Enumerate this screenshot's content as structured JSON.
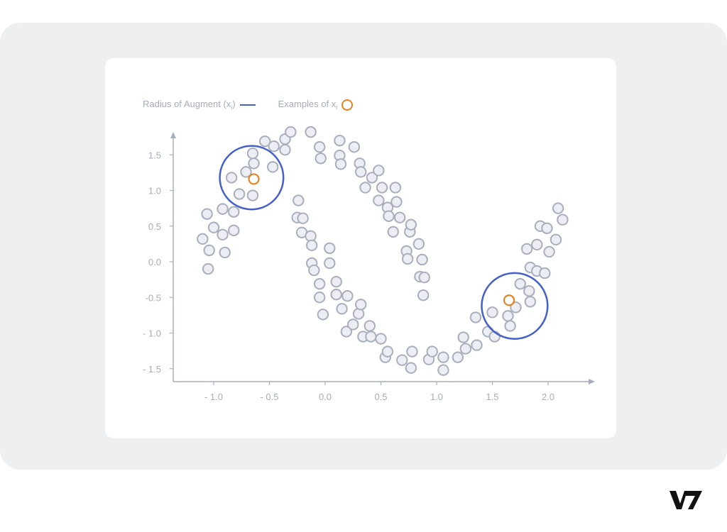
{
  "legend": {
    "radius_label": "Radius of Augment (x",
    "radius_sub": "i",
    "radius_close": ")",
    "examples_label": "Examples of x",
    "examples_sub": "i"
  },
  "colors": {
    "accent_blue": "#4560c9",
    "accent_orange": "#e8821e",
    "point_stroke": "#a9aebd",
    "point_fill": "#eceef3",
    "axis": "#a9aebd"
  },
  "logo": {
    "name": "v7-logo"
  },
  "chart_data": {
    "type": "scatter",
    "title": "",
    "xlabel": "",
    "ylabel": "",
    "xlim": [
      -1.2,
      2.4
    ],
    "ylim": [
      -1.65,
      1.8
    ],
    "grid": false,
    "x_ticks": [
      {
        "value": -1.0,
        "label": "- 1.0"
      },
      {
        "value": -0.5,
        "label": "- 0.5"
      },
      {
        "value": 0.0,
        "label": "0.0"
      },
      {
        "value": 0.5,
        "label": "0.5"
      },
      {
        "value": 1.0,
        "label": "1.0"
      },
      {
        "value": 1.5,
        "label": "1.5"
      },
      {
        "value": 2.0,
        "label": "2.0"
      }
    ],
    "y_ticks": [
      {
        "value": 1.5,
        "label": "1.5"
      },
      {
        "value": 1.0,
        "label": "1.0"
      },
      {
        "value": 0.5,
        "label": "0.5"
      },
      {
        "value": 0.0,
        "label": "0.0"
      },
      {
        "value": -0.5,
        "label": "-0.5"
      },
      {
        "value": -1.0,
        "label": "- 1.0"
      },
      {
        "value": -1.5,
        "label": "- 1.5"
      }
    ],
    "points": [
      [
        -1.1,
        0.32
      ],
      [
        -1.06,
        0.67
      ],
      [
        -1.04,
        0.16
      ],
      [
        -1.05,
        -0.1
      ],
      [
        -1.0,
        0.48
      ],
      [
        -0.92,
        0.38
      ],
      [
        -0.92,
        0.74
      ],
      [
        -0.9,
        0.13
      ],
      [
        -0.82,
        0.44
      ],
      [
        -0.82,
        0.7
      ],
      [
        -0.84,
        1.18
      ],
      [
        -0.77,
        0.95
      ],
      [
        -0.71,
        1.26
      ],
      [
        -0.65,
        1.52
      ],
      [
        -0.64,
        1.38
      ],
      [
        -0.65,
        0.93
      ],
      [
        -0.54,
        1.69
      ],
      [
        -0.46,
        1.62
      ],
      [
        -0.47,
        1.33
      ],
      [
        -0.36,
        1.72
      ],
      [
        -0.36,
        1.57
      ],
      [
        -0.31,
        1.82
      ],
      [
        -0.24,
        0.86
      ],
      [
        -0.25,
        0.62
      ],
      [
        -0.2,
        0.61
      ],
      [
        -0.21,
        0.41
      ],
      [
        -0.13,
        0.36
      ],
      [
        -0.12,
        0.23
      ],
      [
        -0.12,
        -0.02
      ],
      [
        -0.1,
        -0.12
      ],
      [
        -0.05,
        -0.31
      ],
      [
        -0.05,
        -0.5
      ],
      [
        -0.02,
        -0.74
      ],
      [
        0.04,
        0.19
      ],
      [
        0.04,
        -0.02
      ],
      [
        0.1,
        -0.28
      ],
      [
        0.1,
        -0.46
      ],
      [
        0.15,
        -0.66
      ],
      [
        0.2,
        -0.48
      ],
      [
        0.19,
        -0.98
      ],
      [
        -0.13,
        1.82
      ],
      [
        -0.05,
        1.61
      ],
      [
        -0.04,
        1.45
      ],
      [
        0.13,
        1.7
      ],
      [
        0.13,
        1.49
      ],
      [
        0.14,
        1.37
      ],
      [
        0.26,
        1.61
      ],
      [
        0.31,
        1.38
      ],
      [
        0.32,
        1.26
      ],
      [
        0.36,
        1.04
      ],
      [
        0.42,
        1.18
      ],
      [
        0.48,
        1.28
      ],
      [
        0.48,
        0.86
      ],
      [
        0.51,
        1.04
      ],
      [
        0.56,
        0.76
      ],
      [
        0.57,
        0.64
      ],
      [
        0.61,
        0.42
      ],
      [
        0.63,
        1.04
      ],
      [
        0.64,
        0.84
      ],
      [
        0.67,
        0.62
      ],
      [
        0.73,
        0.15
      ],
      [
        0.74,
        0.04
      ],
      [
        0.76,
        0.42
      ],
      [
        0.77,
        0.52
      ],
      [
        0.84,
        0.25
      ],
      [
        0.85,
        -0.21
      ],
      [
        0.87,
        0.03
      ],
      [
        0.89,
        -0.22
      ],
      [
        0.88,
        -0.47
      ],
      [
        0.25,
        -0.88
      ],
      [
        0.3,
        -0.73
      ],
      [
        0.32,
        -0.6
      ],
      [
        0.34,
        -1.05
      ],
      [
        0.4,
        -0.9
      ],
      [
        0.41,
        -1.05
      ],
      [
        0.5,
        -1.08
      ],
      [
        0.54,
        -1.34
      ],
      [
        0.56,
        -1.26
      ],
      [
        0.69,
        -1.38
      ],
      [
        0.77,
        -1.49
      ],
      [
        0.78,
        -1.26
      ],
      [
        0.93,
        -1.37
      ],
      [
        0.96,
        -1.26
      ],
      [
        1.06,
        -1.34
      ],
      [
        1.06,
        -1.52
      ],
      [
        1.19,
        -1.34
      ],
      [
        1.24,
        -1.06
      ],
      [
        1.26,
        -1.22
      ],
      [
        1.36,
        -1.17
      ],
      [
        1.35,
        -0.78
      ],
      [
        1.46,
        -0.98
      ],
      [
        1.52,
        -1.05
      ],
      [
        1.5,
        -0.71
      ],
      [
        1.64,
        -0.76
      ],
      [
        1.66,
        -0.9
      ],
      [
        1.71,
        -0.64
      ],
      [
        1.75,
        -0.31
      ],
      [
        1.83,
        -0.41
      ],
      [
        1.84,
        -0.56
      ],
      [
        1.81,
        0.18
      ],
      [
        1.84,
        -0.08
      ],
      [
        1.9,
        -0.13
      ],
      [
        1.9,
        0.24
      ],
      [
        1.93,
        0.5
      ],
      [
        1.97,
        -0.16
      ],
      [
        1.99,
        0.47
      ],
      [
        2.01,
        0.14
      ],
      [
        2.07,
        0.31
      ],
      [
        2.09,
        0.75
      ],
      [
        2.13,
        0.59
      ]
    ],
    "examples": [
      [
        -0.64,
        1.16
      ],
      [
        1.65,
        -0.54
      ]
    ],
    "augment_radii": [
      {
        "center": [
          -0.66,
          1.18
        ],
        "radius": 0.56
      },
      {
        "center": [
          1.7,
          -0.62
        ],
        "radius": 0.58
      }
    ]
  }
}
